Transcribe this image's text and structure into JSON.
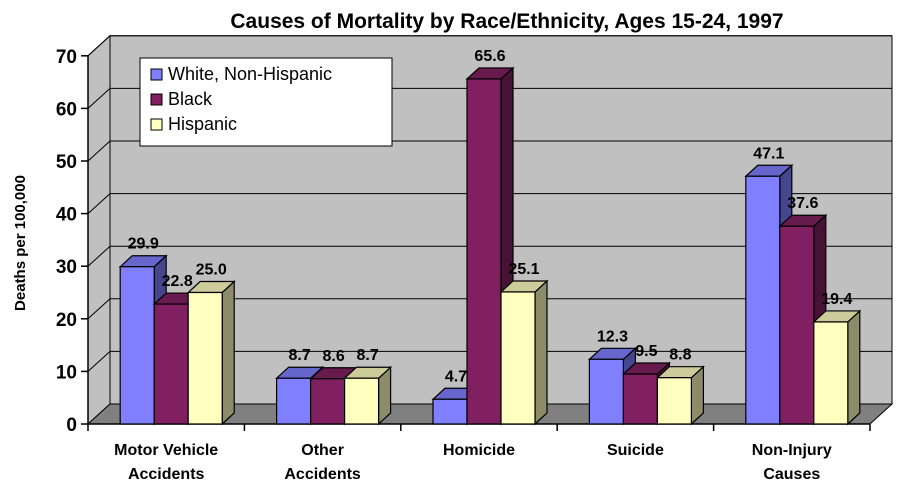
{
  "chart_data": {
    "type": "bar",
    "title": "Causes of Mortality by Race/Ethnicity, Ages 15-24, 1997",
    "xlabel": "",
    "ylabel": "Deaths per 100,000",
    "ylim": [
      0,
      70
    ],
    "yticks": [
      "0",
      "10",
      "20",
      "30",
      "40",
      "50",
      "60",
      "70"
    ],
    "categories": [
      [
        "Motor Vehicle",
        "Accidents"
      ],
      [
        "Other",
        "Accidents"
      ],
      [
        "Homicide"
      ],
      [
        "Suicide"
      ],
      [
        "Non-Injury",
        "Causes"
      ]
    ],
    "series": [
      {
        "name": "White, Non-Hispanic",
        "color": "#8080ff",
        "values": [
          29.9,
          8.7,
          4.7,
          12.3,
          47.1
        ],
        "labels": [
          "29.9",
          "8.7",
          "4.7",
          "12.3",
          "47.1"
        ]
      },
      {
        "name": "Black",
        "color": "#802060",
        "values": [
          22.8,
          8.6,
          65.6,
          9.5,
          37.6
        ],
        "labels": [
          "22.8",
          "8.6",
          "65.6",
          "9.5",
          "37.6"
        ]
      },
      {
        "name": "Hispanic",
        "color": "#ffffc0",
        "values": [
          25.0,
          8.7,
          25.1,
          8.8,
          19.4
        ],
        "labels": [
          "25.0",
          "8.7",
          "25.1",
          "8.8",
          "19.4"
        ]
      }
    ],
    "legend_position": "top-left",
    "grid": true,
    "style": "3d"
  }
}
